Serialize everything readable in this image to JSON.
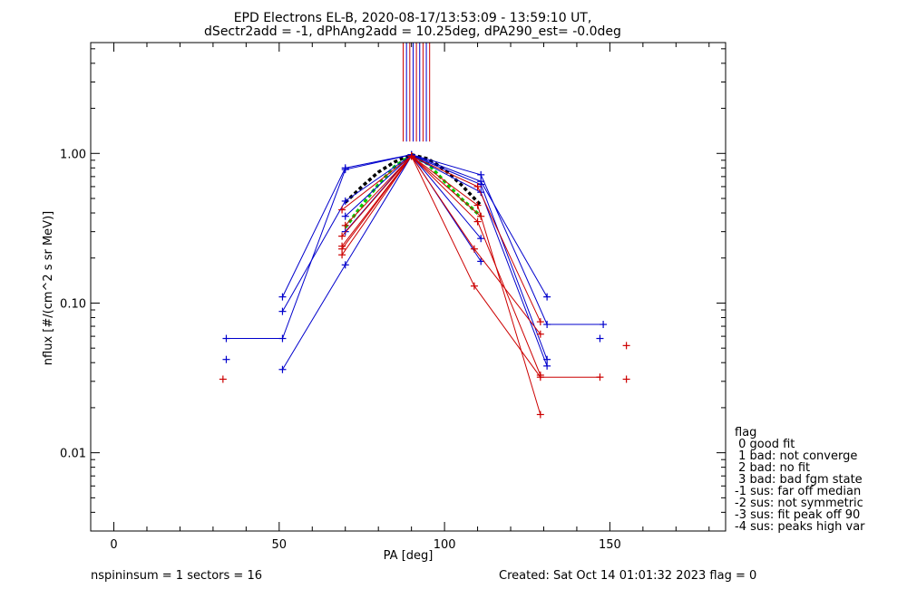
{
  "chart_data": {
    "type": "line",
    "title": "EPD Electrons EL-B, 2020-08-17/13:53:09 - 13:59:10 UT,",
    "subtitle": "dSectr2add = -1, dPhAng2add = 10.25deg, dPA290_est=  -0.0deg",
    "xlabel": "PA [deg]",
    "ylabel": "nflux [#/(cm^2 s sr MeV)]",
    "xlim": [
      -7,
      185
    ],
    "ylim": [
      0.003,
      5.5
    ],
    "yscale": "log",
    "grid": false,
    "x_ticks": [
      0,
      50,
      100,
      150
    ],
    "x_tick_labels": [
      "0",
      "50",
      "100",
      "150"
    ],
    "y_ticks": [
      0.01,
      0.1,
      1.0
    ],
    "y_tick_labels": [
      "0.01",
      "0.10",
      "1.00"
    ],
    "vertical_lines": {
      "x": [
        87.5,
        88.5,
        89.5,
        90.5,
        91.5,
        92.5,
        93.5,
        94.5,
        95.5
      ],
      "y_from": 1.2,
      "colors": [
        "#cc0000",
        "#0000cc",
        "#cc0000",
        "#0000cc",
        "#cc0000",
        "#0000cc",
        "#cc0000",
        "#0000cc",
        "#cc0000"
      ]
    },
    "series": [
      {
        "color": "#0000cc",
        "x": [
          34,
          51,
          70,
          90,
          111,
          131,
          148
        ],
        "y": [
          0.058,
          0.058,
          0.78,
          0.98,
          0.72,
          0.072,
          0.072
        ]
      },
      {
        "color": "#0000cc",
        "x": [
          51,
          70,
          90,
          111,
          131
        ],
        "y": [
          0.11,
          0.8,
          0.98,
          0.65,
          0.11
        ]
      },
      {
        "color": "#0000cc",
        "x": [
          51,
          70,
          90,
          111,
          131
        ],
        "y": [
          0.088,
          0.48,
          0.97,
          0.62,
          0.042
        ]
      },
      {
        "color": "#0000cc",
        "x": [
          51,
          70,
          90,
          111,
          131
        ],
        "y": [
          0.036,
          0.18,
          0.96,
          0.55,
          0.038
        ]
      },
      {
        "color": "#0000cc",
        "x": [
          70,
          90,
          111
        ],
        "y": [
          0.38,
          0.97,
          0.19
        ]
      },
      {
        "color": "#0000cc",
        "x": [
          70,
          90,
          111
        ],
        "y": [
          0.3,
          0.97,
          0.27
        ]
      },
      {
        "color": "#cc0000",
        "x": [
          69,
          90,
          109,
          129,
          147
        ],
        "y": [
          0.42,
          0.96,
          0.13,
          0.032,
          0.032
        ]
      },
      {
        "color": "#cc0000",
        "x": [
          69,
          90,
          110,
          129
        ],
        "y": [
          0.23,
          0.96,
          0.45,
          0.018
        ]
      },
      {
        "color": "#cc0000",
        "x": [
          69,
          90,
          110,
          129
        ],
        "y": [
          0.21,
          0.96,
          0.35,
          0.033
        ]
      },
      {
        "color": "#cc0000",
        "x": [
          69,
          90,
          110,
          129
        ],
        "y": [
          0.28,
          0.96,
          0.6,
          0.075
        ]
      },
      {
        "color": "#cc0000",
        "x": [
          69,
          90,
          109,
          129
        ],
        "y": [
          0.24,
          0.96,
          0.23,
          0.062
        ]
      },
      {
        "color": "#cc0000",
        "x": [
          70,
          90,
          111
        ],
        "y": [
          0.33,
          0.96,
          0.38
        ]
      }
    ],
    "points": [
      {
        "color": "#0000cc",
        "x": 34,
        "y": 0.042
      },
      {
        "color": "#0000cc",
        "x": 147,
        "y": 0.058
      },
      {
        "color": "#cc0000",
        "x": 33,
        "y": 0.031
      },
      {
        "color": "#cc0000",
        "x": 155,
        "y": 0.052
      },
      {
        "color": "#cc0000",
        "x": 155,
        "y": 0.031
      }
    ],
    "fits": [
      {
        "color": "#000000",
        "style": "dashed",
        "x": [
          70,
          75,
          80,
          85,
          90,
          95,
          100,
          105,
          111
        ],
        "y": [
          0.47,
          0.6,
          0.75,
          0.88,
          0.98,
          0.92,
          0.78,
          0.62,
          0.45
        ]
      },
      {
        "color": "#00cc00",
        "style": "dashed",
        "x": [
          70,
          75,
          80,
          85,
          90,
          95,
          100,
          105,
          111
        ],
        "y": [
          0.32,
          0.45,
          0.62,
          0.82,
          0.97,
          0.85,
          0.65,
          0.5,
          0.38
        ]
      }
    ],
    "legend": {
      "placement": "right",
      "title": "flag",
      "entries": [
        " 0 good fit",
        " 1 bad: not converge",
        " 2 bad: no fit",
        " 3 bad: bad fgm state",
        "-1 sus: far off median",
        "-2 sus: not symmetric",
        "-3 sus: fit peak off 90",
        "-4 sus: peaks high var"
      ]
    },
    "footer_left": "nspininsum =  1  sectors = 16",
    "footer_right": "Created: Sat Oct 14 01:01:32 2023   flag = 0"
  }
}
